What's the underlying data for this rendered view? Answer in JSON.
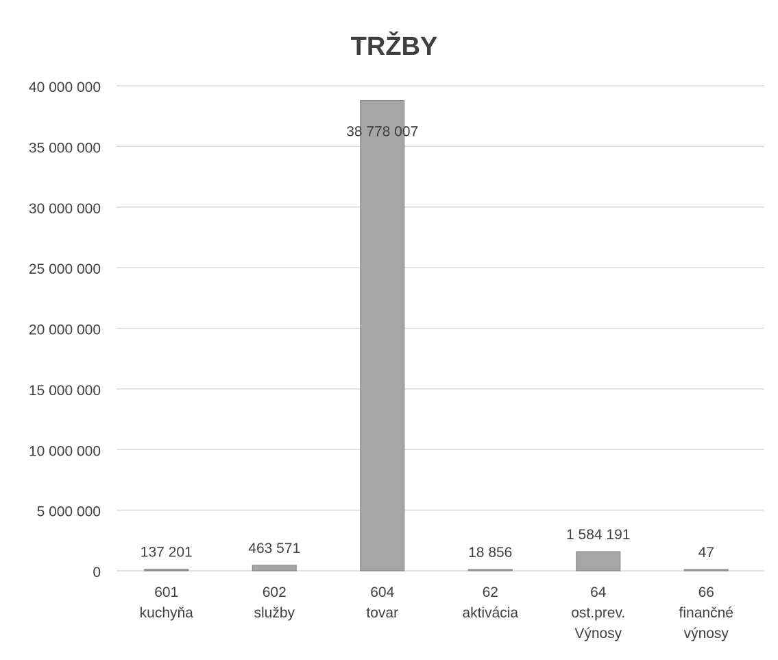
{
  "chart_data": {
    "type": "bar",
    "title": "TRŽBY",
    "xlabel": "",
    "ylabel": "",
    "ylim": [
      0,
      40000000
    ],
    "yticks": [
      0,
      5000000,
      10000000,
      15000000,
      20000000,
      25000000,
      30000000,
      35000000,
      40000000
    ],
    "ytick_labels": [
      "0",
      "5 000 000",
      "10 000 000",
      "15 000 000",
      "20 000 000",
      "25 000 000",
      "30 000 000",
      "35 000 000",
      "40 000 000"
    ],
    "categories": [
      [
        "601",
        "kuchyňa"
      ],
      [
        "602",
        "služby"
      ],
      [
        "604",
        "tovar"
      ],
      [
        "62",
        "aktivácia"
      ],
      [
        "64",
        "ost.prev.",
        "Výnosy"
      ],
      [
        "66",
        "finančné",
        "výnosy"
      ]
    ],
    "values": [
      137201,
      463571,
      38778007,
      18856,
      1584191,
      47
    ],
    "data_labels": [
      "137 201",
      "463 571",
      "38 778 007",
      "18 856",
      "1 584 191",
      "47"
    ],
    "grid": true,
    "legend": "none",
    "colors": {
      "bar": "#a6a6a6",
      "bar_stroke": "#7f7f7f",
      "grid": "#d9d9d9",
      "text": "#404040",
      "title": "#404040"
    }
  }
}
